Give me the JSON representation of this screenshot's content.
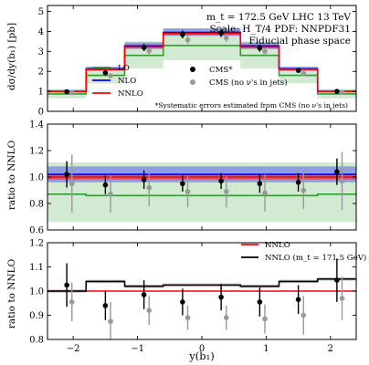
{
  "figure": {
    "xlabel": "y(b₁)",
    "xlim": [
      -2.4,
      2.4
    ],
    "xticks": [
      -2,
      -1,
      0,
      1,
      2
    ],
    "xtick_labels": [
      "−2",
      "−1",
      "0",
      "1",
      "2"
    ]
  },
  "chart_data": [
    {
      "type": "line",
      "panel": "top",
      "ylabel": "dσ/dy(b₁) [pb]",
      "ylim": [
        0,
        5.3
      ],
      "yticks": [
        0,
        1,
        2,
        3,
        4,
        5
      ],
      "ytick_labels": [
        "0",
        "1",
        "2",
        "3",
        "4",
        "5"
      ],
      "annotations": [
        "m_t = 172.5 GeV LHC 13 TeV",
        "Scale: H_T/4 PDF: NNPDF31",
        "Fiducial phase space",
        "*Systematic errors estimated from CMS (no ν's in jets)"
      ],
      "bin_edges": [
        -2.4,
        -1.8,
        -1.2,
        -0.6,
        0.0,
        0.6,
        1.2,
        1.8,
        2.4
      ],
      "series": [
        {
          "name": "LO",
          "color": "#2ca02c",
          "values": [
            0.87,
            1.8,
            2.8,
            3.3,
            3.3,
            2.8,
            1.8,
            0.87
          ],
          "band_low": [
            0.65,
            1.4,
            2.15,
            2.55,
            2.55,
            2.15,
            1.4,
            0.65
          ],
          "band_high": [
            1.1,
            2.2,
            3.5,
            4.15,
            4.15,
            3.5,
            2.2,
            1.1
          ]
        },
        {
          "name": "NLO",
          "color": "#0000ff",
          "values": [
            1.0,
            2.13,
            3.28,
            3.95,
            3.95,
            3.28,
            2.13,
            1.0
          ],
          "band_low": [
            0.95,
            2.03,
            3.12,
            3.78,
            3.78,
            3.12,
            2.03,
            0.95
          ],
          "band_high": [
            1.07,
            2.24,
            3.45,
            4.15,
            4.15,
            3.45,
            2.24,
            1.07
          ]
        },
        {
          "name": "NNLO",
          "color": "#ff0000",
          "values": [
            0.99,
            2.1,
            3.23,
            3.9,
            3.9,
            3.23,
            2.1,
            0.99
          ],
          "band_low": [
            0.97,
            2.06,
            3.17,
            3.82,
            3.82,
            3.17,
            2.06,
            0.97
          ],
          "band_high": [
            1.01,
            2.14,
            3.29,
            3.98,
            3.98,
            3.29,
            2.14,
            1.01
          ]
        }
      ],
      "points": [
        {
          "name": "CMS*",
          "color": "#000000",
          "x": [
            -2.1,
            -1.5,
            -0.9,
            -0.3,
            0.3,
            0.9,
            1.5,
            2.1
          ],
          "y": [
            0.98,
            1.93,
            3.2,
            3.85,
            3.92,
            3.17,
            2.05,
            1.0
          ],
          "err": [
            0.09,
            0.12,
            0.18,
            0.2,
            0.2,
            0.18,
            0.12,
            0.09
          ]
        },
        {
          "name": "CMS (no ν's in jets)",
          "color": "#999999",
          "x": [
            -2.02,
            -1.42,
            -0.82,
            -0.22,
            0.38,
            0.98,
            1.58,
            2.18
          ],
          "y": [
            0.93,
            1.78,
            3.03,
            3.58,
            3.68,
            3.0,
            1.9,
            0.95
          ],
          "err": [
            0.09,
            0.12,
            0.18,
            0.2,
            0.2,
            0.18,
            0.12,
            0.09
          ]
        }
      ]
    },
    {
      "type": "line",
      "panel": "middle",
      "ylabel": "ratio to NNLO",
      "ylim": [
        0.6,
        1.4
      ],
      "yticks": [
        0.6,
        0.8,
        1.0,
        1.2,
        1.4
      ],
      "ytick_labels": [
        "0.6",
        "0.8",
        "1.0",
        "1.2",
        "1.4"
      ],
      "bin_edges": [
        -2.4,
        -1.8,
        -1.2,
        -0.6,
        0.0,
        0.6,
        1.2,
        1.8,
        2.4
      ],
      "series": [
        {
          "name": "LO",
          "color": "#2ca02c",
          "values": [
            0.87,
            0.86,
            0.86,
            0.86,
            0.86,
            0.86,
            0.86,
            0.87
          ],
          "band_low": [
            0.66,
            0.66,
            0.66,
            0.66,
            0.66,
            0.66,
            0.66,
            0.66
          ],
          "band_high": [
            1.11,
            1.11,
            1.11,
            1.11,
            1.11,
            1.11,
            1.11,
            1.11
          ]
        },
        {
          "name": "NLO",
          "color": "#0000ff",
          "values": [
            1.02,
            1.02,
            1.02,
            1.02,
            1.02,
            1.02,
            1.02,
            1.02
          ],
          "band_low": [
            0.96,
            0.96,
            0.96,
            0.96,
            0.96,
            0.96,
            0.96,
            0.96
          ],
          "band_high": [
            1.08,
            1.08,
            1.08,
            1.08,
            1.08,
            1.08,
            1.08,
            1.08
          ]
        },
        {
          "name": "NNLO",
          "color": "#ff0000",
          "values": [
            1.0,
            1.0,
            1.0,
            1.0,
            1.0,
            1.0,
            1.0,
            1.0
          ],
          "band_low": [
            0.98,
            0.98,
            0.98,
            0.98,
            0.98,
            0.98,
            0.98,
            0.98
          ],
          "band_high": [
            1.02,
            1.02,
            1.02,
            1.02,
            1.02,
            1.02,
            1.02,
            1.02
          ]
        }
      ],
      "points": [
        {
          "name": "CMS*",
          "color": "#000000",
          "x": [
            -2.1,
            -1.5,
            -0.9,
            -0.3,
            0.3,
            0.9,
            1.5,
            2.1
          ],
          "y": [
            1.02,
            0.94,
            0.98,
            0.95,
            0.97,
            0.95,
            0.96,
            1.04
          ],
          "err": [
            0.1,
            0.07,
            0.07,
            0.06,
            0.06,
            0.07,
            0.07,
            0.1
          ]
        },
        {
          "name": "CMS (no ν's in jets)",
          "color": "#999999",
          "x": [
            -2.02,
            -1.42,
            -0.82,
            -0.22,
            0.38,
            0.98,
            1.58,
            2.18
          ],
          "y": [
            0.95,
            0.87,
            0.92,
            0.89,
            0.89,
            0.88,
            0.9,
            0.97
          ],
          "err": [
            0.22,
            0.14,
            0.14,
            0.12,
            0.12,
            0.14,
            0.14,
            0.22
          ]
        }
      ]
    },
    {
      "type": "line",
      "panel": "bottom",
      "ylabel": "ratio to NNLO",
      "ylim": [
        0.8,
        1.2
      ],
      "yticks": [
        0.8,
        0.9,
        1.0,
        1.1,
        1.2
      ],
      "ytick_labels": [
        "0.8",
        "0.9",
        "1.0",
        "1.1",
        "1.2"
      ],
      "bin_edges": [
        -2.4,
        -1.8,
        -1.2,
        -0.6,
        0.0,
        0.6,
        1.2,
        1.8,
        2.4
      ],
      "series": [
        {
          "name": "NNLO",
          "color": "#ff0000",
          "values": [
            1.0,
            1.0,
            1.0,
            1.0,
            1.0,
            1.0,
            1.0,
            1.0
          ]
        },
        {
          "name": "NNLO (m_t = 171.5 GeV)",
          "color": "#000000",
          "values": [
            1.0,
            1.04,
            1.02,
            1.025,
            1.025,
            1.02,
            1.04,
            1.05
          ],
          "band_low": [
            0.993,
            1.033,
            1.013,
            1.018,
            1.018,
            1.013,
            1.033,
            1.043
          ],
          "band_high": [
            1.007,
            1.047,
            1.027,
            1.032,
            1.032,
            1.027,
            1.047,
            1.057
          ]
        }
      ],
      "points": [
        {
          "name": "CMS*",
          "color": "#000000",
          "x": [
            -2.1,
            -1.5,
            -0.9,
            -0.3,
            0.3,
            0.9,
            1.5,
            2.1
          ],
          "y": [
            1.025,
            0.94,
            0.985,
            0.955,
            0.975,
            0.955,
            0.965,
            1.045
          ],
          "err": [
            0.09,
            0.06,
            0.06,
            0.055,
            0.055,
            0.06,
            0.06,
            0.09
          ]
        },
        {
          "name": "CMS (no ν's in jets)",
          "color": "#999999",
          "x": [
            -2.02,
            -1.42,
            -0.82,
            -0.22,
            0.38,
            0.98,
            1.58,
            2.18
          ],
          "y": [
            0.955,
            0.875,
            0.92,
            0.89,
            0.89,
            0.885,
            0.9,
            0.97
          ],
          "err": [
            0.08,
            0.08,
            0.06,
            0.05,
            0.05,
            0.06,
            0.08,
            0.09
          ]
        }
      ]
    }
  ]
}
